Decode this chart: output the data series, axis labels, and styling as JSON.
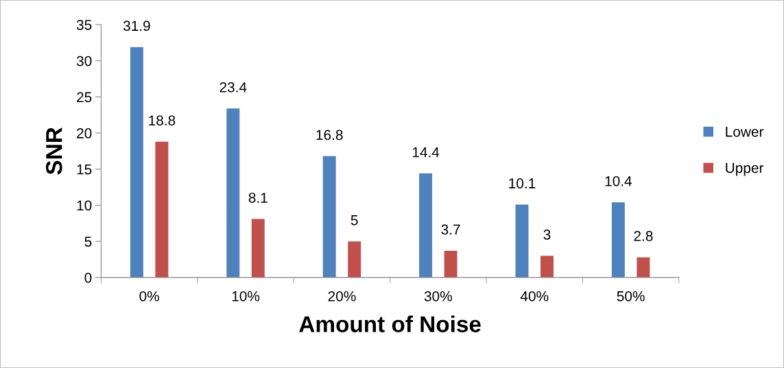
{
  "chart_data": {
    "type": "bar",
    "xlabel": "Amount of Noise",
    "ylabel": "SNR",
    "categories": [
      "0%",
      "10%",
      "20%",
      "30%",
      "40%",
      "50%"
    ],
    "series": [
      {
        "name": "Lower",
        "color": "#4f81bd",
        "values": [
          31.9,
          23.4,
          16.8,
          14.4,
          10.1,
          10.4
        ]
      },
      {
        "name": "Upper",
        "color": "#c0504d",
        "values": [
          18.8,
          8.1,
          5,
          3.7,
          3,
          2.8
        ]
      }
    ],
    "ylim": [
      0,
      35
    ],
    "yticks": [
      0,
      5,
      10,
      15,
      20,
      25,
      30,
      35
    ],
    "data_labels": true,
    "legend": "right",
    "grid": false
  }
}
